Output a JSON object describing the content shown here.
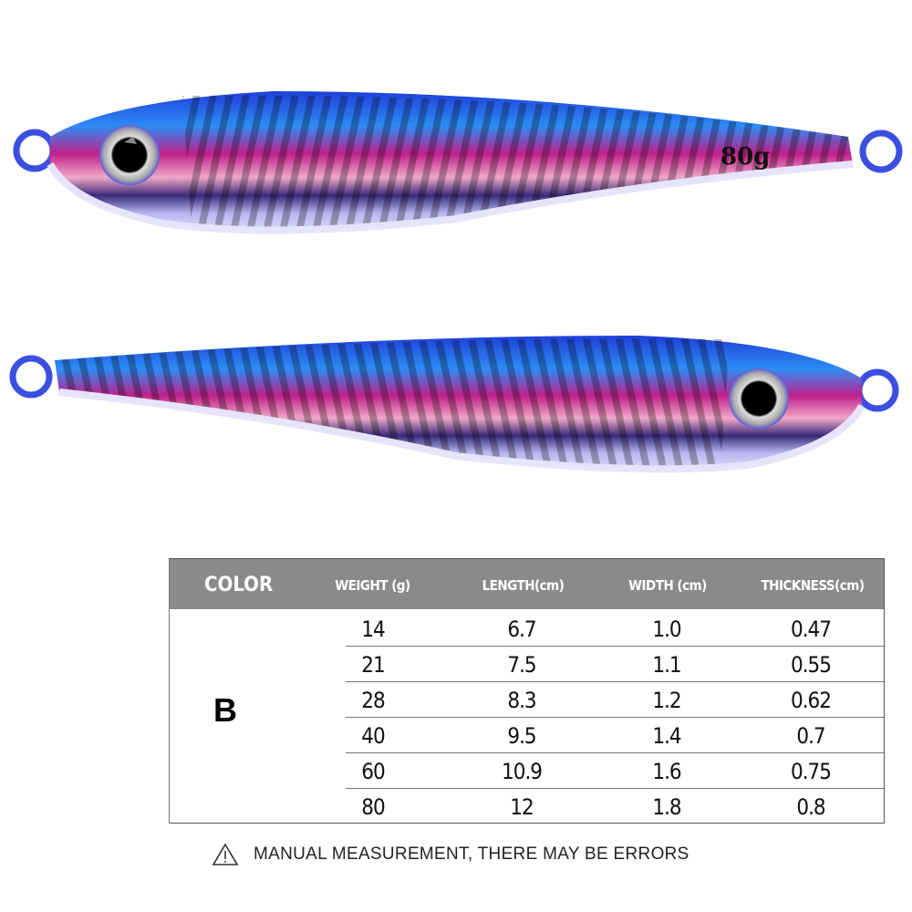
{
  "lure_top": {
    "weight_mark": "80g",
    "facing": "left"
  },
  "lure_bottom": {
    "facing": "right"
  },
  "colors": {
    "body_blue": "#2a5cf0",
    "belly": "#c8c6f4",
    "stripe_pink": "#d8288a",
    "header_gray": "#8a8a8a"
  },
  "table": {
    "headers": [
      "COLOR",
      "WEIGHT (g)",
      "LENGTH(cm)",
      "WIDTH (cm)",
      "THICKNESS(cm)"
    ],
    "color_value": "B",
    "rows": [
      [
        "14",
        "6.7",
        "1.0",
        "0.47"
      ],
      [
        "21",
        "7.5",
        "1.1",
        "0.55"
      ],
      [
        "28",
        "8.3",
        "1.2",
        "0.62"
      ],
      [
        "40",
        "9.5",
        "1.4",
        "0.7"
      ],
      [
        "60",
        "10.9",
        "1.6",
        "0.75"
      ],
      [
        "80",
        "12",
        "1.8",
        "0.8"
      ]
    ]
  },
  "notice": {
    "icon": "warning-triangle-icon",
    "text": "MANUAL MEASUREMENT, THERE MAY BE ERRORS"
  }
}
